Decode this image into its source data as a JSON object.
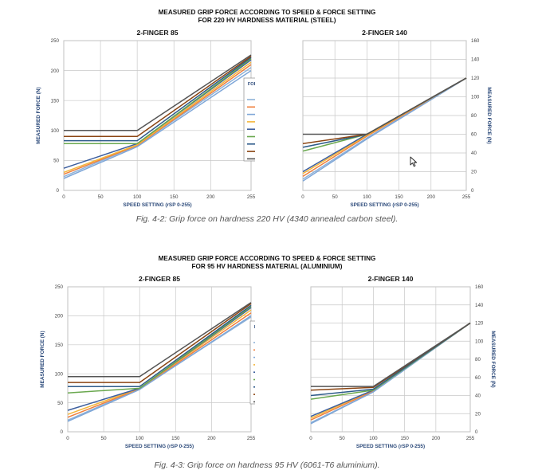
{
  "figures": [
    {
      "title_line1": "MEASURED GRIP FORCE ACCORDING TO SPEED & FORCE SETTING",
      "title_line2": "FOR 220 HV HARDNESS MATERIAL (STEEL)",
      "caption": "Fig. 4-2: Grip force on hardness 220 HV (4340 annealed carbon steel)."
    },
    {
      "title_line1": "MEASURED GRIP FORCE ACCORDING TO SPEED & FORCE SETTING",
      "title_line2": "FOR 95 HV HARDNESS MATERIAL (ALUMINIUM)",
      "caption": "Fig. 4-3: Grip force on hardness 95 HV (6061-T6 aluminium)."
    }
  ],
  "legend": {
    "title_line1": "FORCE SETTING",
    "title_line2": "(rFR 0-255)"
  },
  "colors": {
    "Force 0": "#8fb2d8",
    "Force 1": "#f07f3c",
    "Force 50": "#7fa7d8",
    "Force 100": "#f4b63a",
    "Force 127": "#3d5f9e",
    "Force 128": "#6aa84f",
    "Force 150": "#2e5b8a",
    "Force 200": "#8b4513",
    "Force 255": "#555555"
  },
  "chart_data": [
    {
      "type": "line",
      "title": "2-FINGER 85",
      "xlabel": "SPEED SETTING (rSP 0-255)",
      "ylabel": "MEASURED FORCE (N)",
      "xlim": [
        0,
        255
      ],
      "ylim": [
        0,
        250
      ],
      "xticks": [
        0,
        50,
        100,
        150,
        200,
        255
      ],
      "yticks": [
        0,
        50,
        100,
        150,
        200,
        250
      ],
      "y_axis_side": "left",
      "grid": true,
      "legend": "right",
      "series": [
        {
          "name": "Force 0",
          "x": [
            0,
            100,
            255
          ],
          "y": [
            23,
            75,
            205
          ]
        },
        {
          "name": "Force 1",
          "x": [
            0,
            100,
            255
          ],
          "y": [
            27,
            75,
            210
          ]
        },
        {
          "name": "Force 50",
          "x": [
            0,
            100,
            255
          ],
          "y": [
            20,
            73,
            200
          ]
        },
        {
          "name": "Force 100",
          "x": [
            0,
            100,
            255
          ],
          "y": [
            30,
            76,
            214
          ]
        },
        {
          "name": "Force 127",
          "x": [
            0,
            100,
            255
          ],
          "y": [
            37,
            78,
            218
          ]
        },
        {
          "name": "Force 128",
          "x": [
            0,
            100,
            255
          ],
          "y": [
            78,
            78,
            220
          ]
        },
        {
          "name": "Force 150",
          "x": [
            0,
            100,
            255
          ],
          "y": [
            83,
            83,
            222
          ]
        },
        {
          "name": "Force 200",
          "x": [
            0,
            100,
            255
          ],
          "y": [
            90,
            90,
            224
          ]
        },
        {
          "name": "Force 255",
          "x": [
            0,
            100,
            255
          ],
          "y": [
            100,
            100,
            226
          ]
        }
      ]
    },
    {
      "type": "line",
      "title": "2-FINGER 140",
      "xlabel": "SPEED SETTING (rSP 0-255)",
      "ylabel": "MEASURED FORCE (N)",
      "xlim": [
        0,
        255
      ],
      "ylim": [
        0,
        160
      ],
      "xticks": [
        0,
        50,
        100,
        150,
        200,
        255
      ],
      "yticks": [
        0,
        20,
        40,
        60,
        80,
        100,
        120,
        140,
        160
      ],
      "y_axis_side": "right",
      "grid": true,
      "series": [
        {
          "name": "Force 0",
          "x": [
            0,
            100,
            255
          ],
          "y": [
            12,
            56,
            120
          ]
        },
        {
          "name": "Force 1",
          "x": [
            0,
            100,
            255
          ],
          "y": [
            15,
            58,
            120
          ]
        },
        {
          "name": "Force 50",
          "x": [
            0,
            100,
            255
          ],
          "y": [
            10,
            55,
            120
          ]
        },
        {
          "name": "Force 100",
          "x": [
            0,
            100,
            255
          ],
          "y": [
            18,
            59,
            120
          ]
        },
        {
          "name": "Force 127",
          "x": [
            0,
            100,
            255
          ],
          "y": [
            20,
            60,
            120
          ]
        },
        {
          "name": "Force 128",
          "x": [
            0,
            100,
            255
          ],
          "y": [
            42,
            60,
            120
          ]
        },
        {
          "name": "Force 150",
          "x": [
            0,
            100,
            255
          ],
          "y": [
            46,
            60,
            120
          ]
        },
        {
          "name": "Force 200",
          "x": [
            0,
            100,
            255
          ],
          "y": [
            50,
            60,
            120
          ]
        },
        {
          "name": "Force 255",
          "x": [
            0,
            100,
            255
          ],
          "y": [
            60,
            60,
            120
          ]
        }
      ]
    },
    {
      "type": "line",
      "title": "2-FINGER 85",
      "xlabel": "SPEED SETTING (rSP 0-255)",
      "ylabel": "MEASURED FORCE (N)",
      "xlim": [
        0,
        255
      ],
      "ylim": [
        0,
        250
      ],
      "xticks": [
        0,
        50,
        100,
        150,
        200,
        255
      ],
      "yticks": [
        0,
        50,
        100,
        150,
        200,
        250
      ],
      "y_axis_side": "left",
      "grid": true,
      "legend": "right",
      "series": [
        {
          "name": "Force 0",
          "x": [
            0,
            100,
            255
          ],
          "y": [
            20,
            74,
            198
          ]
        },
        {
          "name": "Force 1",
          "x": [
            0,
            100,
            255
          ],
          "y": [
            25,
            74,
            205
          ]
        },
        {
          "name": "Force 50",
          "x": [
            0,
            100,
            255
          ],
          "y": [
            18,
            73,
            200
          ]
        },
        {
          "name": "Force 100",
          "x": [
            0,
            100,
            255
          ],
          "y": [
            30,
            75,
            210
          ]
        },
        {
          "name": "Force 127",
          "x": [
            0,
            100,
            255
          ],
          "y": [
            37,
            75,
            214
          ]
        },
        {
          "name": "Force 128",
          "x": [
            0,
            100,
            255
          ],
          "y": [
            67,
            75,
            216
          ]
        },
        {
          "name": "Force 150",
          "x": [
            0,
            100,
            255
          ],
          "y": [
            78,
            78,
            218
          ]
        },
        {
          "name": "Force 200",
          "x": [
            0,
            100,
            255
          ],
          "y": [
            85,
            85,
            221
          ]
        },
        {
          "name": "Force 255",
          "x": [
            0,
            100,
            255
          ],
          "y": [
            95,
            95,
            223
          ]
        }
      ]
    },
    {
      "type": "line",
      "title": "2-FINGER 140",
      "xlabel": "SPEED SETTING (rSP 0-255)",
      "ylabel": "MEASURED FORCE (N)",
      "xlim": [
        0,
        255
      ],
      "ylim": [
        0,
        160
      ],
      "xticks": [
        0,
        50,
        100,
        150,
        200,
        255
      ],
      "yticks": [
        0,
        20,
        40,
        60,
        80,
        100,
        120,
        140,
        160
      ],
      "y_axis_side": "right",
      "grid": true,
      "series": [
        {
          "name": "Force 0",
          "x": [
            0,
            100,
            255
          ],
          "y": [
            10,
            44,
            120
          ]
        },
        {
          "name": "Force 1",
          "x": [
            0,
            100,
            255
          ],
          "y": [
            13,
            45,
            120
          ]
        },
        {
          "name": "Force 50",
          "x": [
            0,
            100,
            255
          ],
          "y": [
            9,
            44,
            120
          ]
        },
        {
          "name": "Force 100",
          "x": [
            0,
            100,
            255
          ],
          "y": [
            15,
            46,
            120
          ]
        },
        {
          "name": "Force 127",
          "x": [
            0,
            100,
            255
          ],
          "y": [
            17,
            46,
            120
          ]
        },
        {
          "name": "Force 128",
          "x": [
            0,
            100,
            255
          ],
          "y": [
            36,
            46,
            120
          ]
        },
        {
          "name": "Force 150",
          "x": [
            0,
            100,
            255
          ],
          "y": [
            40,
            47,
            120
          ]
        },
        {
          "name": "Force 200",
          "x": [
            0,
            100,
            255
          ],
          "y": [
            46,
            49,
            120
          ]
        },
        {
          "name": "Force 255",
          "x": [
            0,
            100,
            255
          ],
          "y": [
            50,
            50,
            120
          ]
        }
      ]
    }
  ]
}
